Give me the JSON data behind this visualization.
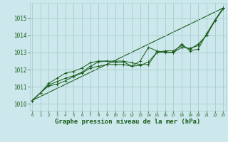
{
  "title": "Graphe pression niveau de la mer (hPa)",
  "bg_color": "#cce8ec",
  "grid_color": "#aacccc",
  "line_color": "#1a5c1a",
  "x_ticks": [
    0,
    1,
    2,
    3,
    4,
    5,
    6,
    7,
    8,
    9,
    10,
    11,
    12,
    13,
    14,
    15,
    16,
    17,
    18,
    19,
    20,
    21,
    22,
    23
  ],
  "xlim": [
    -0.3,
    23.3
  ],
  "ylim": [
    1009.6,
    1015.9
  ],
  "yticks": [
    1010,
    1011,
    1012,
    1013,
    1014,
    1015
  ],
  "series": [
    [
      1010.2,
      1010.65,
      1011.05,
      1011.15,
      1011.35,
      1011.6,
      1011.8,
      1012.1,
      1012.2,
      1012.3,
      1012.3,
      1012.3,
      1012.2,
      1012.5,
      1013.3,
      1013.1,
      1013.0,
      1013.0,
      1013.5,
      1013.1,
      1013.2,
      1014.1,
      1014.9,
      1015.6
    ],
    [
      1010.2,
      1010.65,
      1011.1,
      1011.3,
      1011.5,
      1011.65,
      1011.85,
      1012.2,
      1012.45,
      1012.5,
      1012.4,
      1012.45,
      1012.2,
      1012.25,
      1012.45,
      1013.0,
      1013.05,
      1013.0,
      1013.3,
      1013.25,
      1013.4,
      1014.05,
      1014.85,
      1015.6
    ],
    [
      1010.2,
      1010.65,
      1011.2,
      1011.5,
      1011.8,
      1011.9,
      1012.1,
      1012.4,
      1012.5,
      1012.5,
      1012.5,
      1012.5,
      1012.4,
      1012.3,
      1012.3,
      1013.0,
      1013.1,
      1013.1,
      1013.4,
      1013.2,
      1013.5,
      1014.0,
      1014.85,
      1015.55
    ]
  ],
  "trend_line": [
    1010.2,
    1015.6
  ],
  "trend_x": [
    0,
    23
  ]
}
